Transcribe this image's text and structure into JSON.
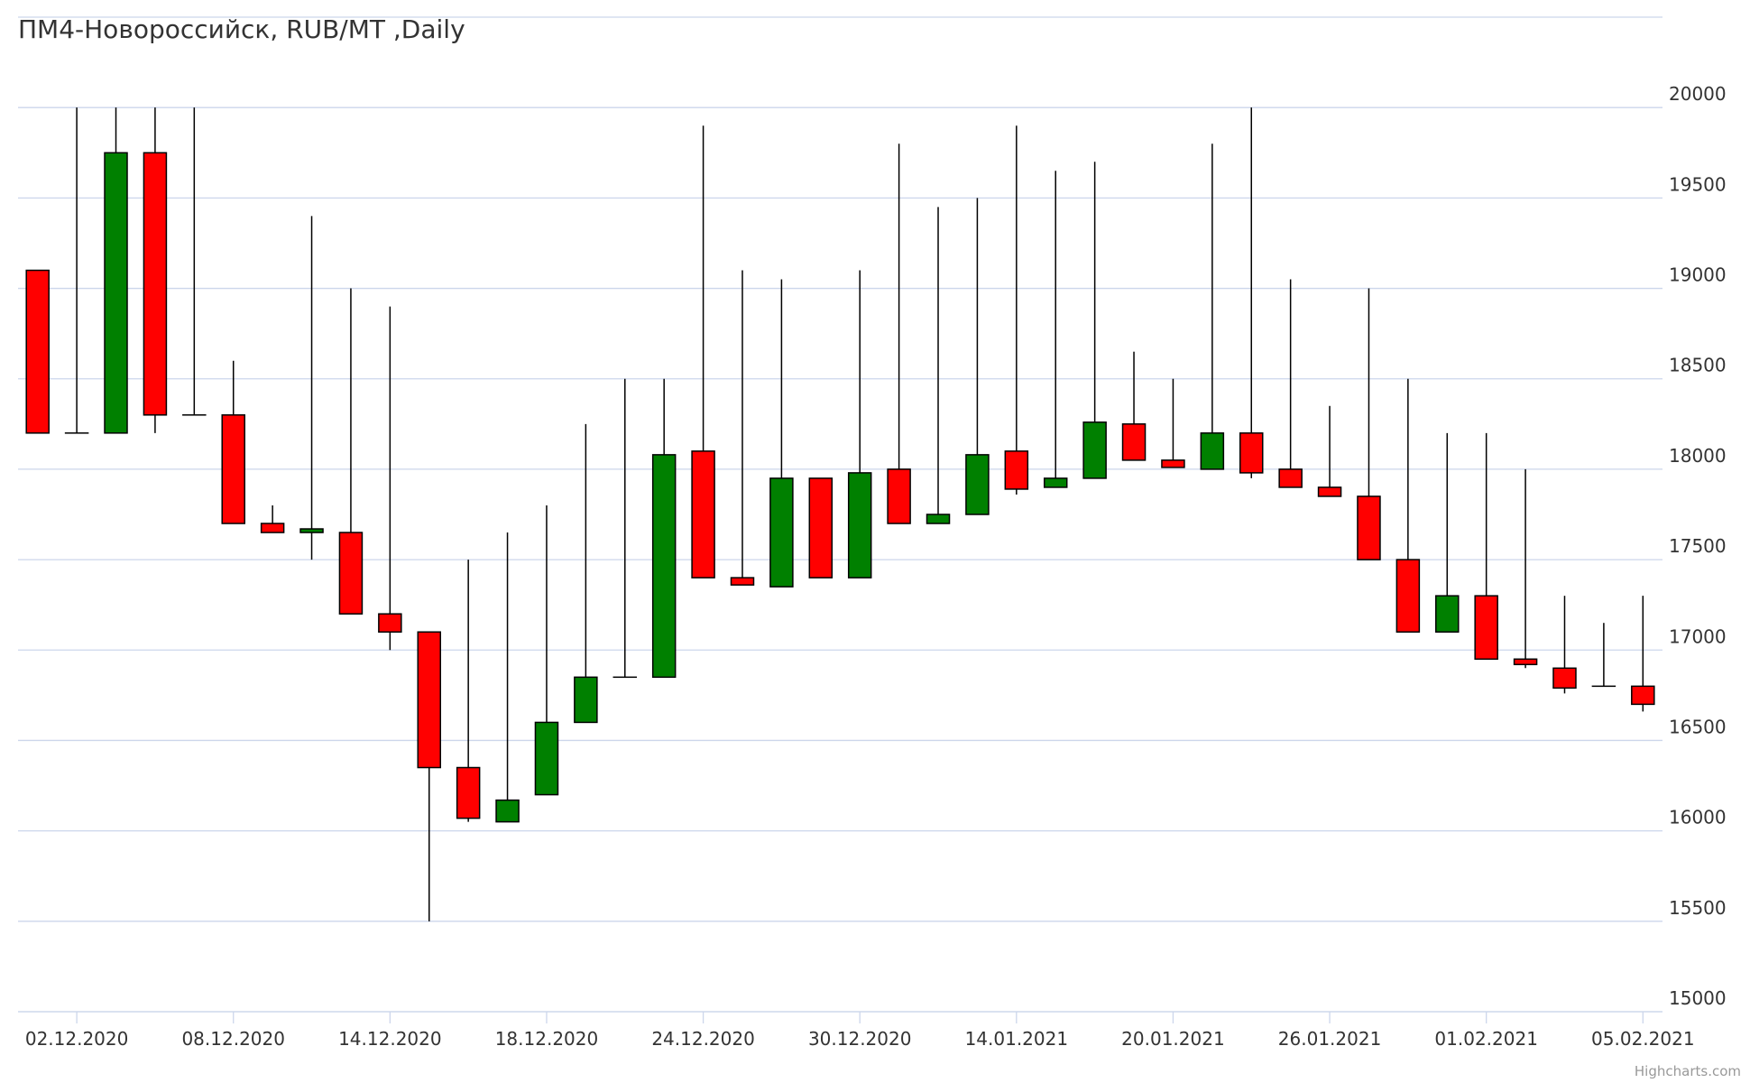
{
  "chart_data": {
    "type": "candlestick",
    "title": "ПМ4-Новороссийск, RUB/MT ,Daily",
    "credits": "Highcharts.com",
    "categories": [
      null,
      "02.12.2020",
      null,
      null,
      null,
      "08.12.2020",
      null,
      null,
      null,
      "14.12.2020",
      null,
      null,
      null,
      "18.12.2020",
      null,
      null,
      null,
      "24.12.2020",
      null,
      null,
      null,
      "30.12.2020",
      null,
      null,
      null,
      "14.01.2021",
      null,
      null,
      null,
      "20.01.2021",
      null,
      null,
      null,
      "26.01.2021",
      null,
      null,
      null,
      "01.02.2021",
      null,
      null,
      null,
      "05.02.2021"
    ],
    "open": [
      19100,
      18200,
      18200,
      19750,
      18300,
      18300,
      17700,
      17650,
      17650,
      17200,
      17100,
      16350,
      16050,
      16200,
      16600,
      16850,
      16850,
      18100,
      17400,
      17350,
      17950,
      17400,
      18000,
      17700,
      17750,
      18100,
      17900,
      17950,
      18250,
      18050,
      18000,
      18200,
      18000,
      17900,
      17850,
      17500,
      17100,
      17300,
      16950,
      16900,
      16800,
      16800
    ],
    "high": [
      19100,
      20000,
      20000,
      20000,
      20000,
      18600,
      17800,
      19400,
      19000,
      18900,
      17100,
      17500,
      17650,
      17800,
      18250,
      18500,
      18500,
      19900,
      19100,
      19050,
      17950,
      19100,
      19800,
      19450,
      19500,
      19900,
      19650,
      19700,
      18650,
      18500,
      19800,
      20000,
      19050,
      18350,
      19000,
      18500,
      18200,
      18200,
      18000,
      17300,
      17150,
      17300
    ],
    "low": [
      18200,
      18200,
      18200,
      18200,
      18300,
      17700,
      17650,
      17500,
      17200,
      17000,
      15500,
      16050,
      16050,
      16200,
      16600,
      16850,
      16850,
      17400,
      17360,
      17350,
      17400,
      17400,
      17700,
      17700,
      17750,
      17860,
      17900,
      17950,
      18050,
      18010,
      18000,
      17950,
      17900,
      17850,
      17500,
      17100,
      17100,
      16950,
      16900,
      16760,
      16800,
      16660
    ],
    "close": [
      18200,
      18200,
      19750,
      18300,
      18300,
      17700,
      17650,
      17670,
      17200,
      17100,
      16350,
      16070,
      16170,
      16600,
      16850,
      16850,
      18080,
      17400,
      17360,
      17950,
      17400,
      17980,
      17700,
      17750,
      18080,
      17890,
      17950,
      18260,
      18050,
      18010,
      18200,
      17980,
      17900,
      17850,
      17500,
      17100,
      17300,
      16950,
      16920,
      16790,
      16800,
      16700
    ],
    "up_color": "#008000",
    "down_color": "#ff0000",
    "ylim": [
      15000,
      20500
    ],
    "yticks": [
      15000,
      15500,
      16000,
      16500,
      17000,
      17500,
      18000,
      18500,
      19000,
      19500,
      20000
    ],
    "grid": true
  }
}
